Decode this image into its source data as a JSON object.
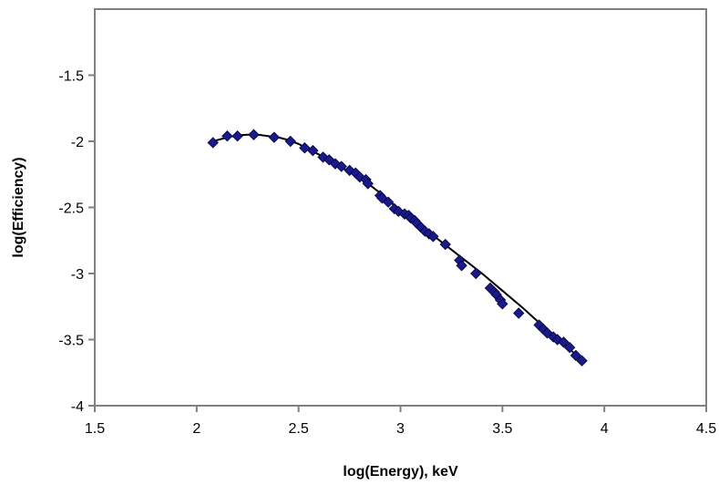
{
  "chart_data": {
    "type": "scatter",
    "title": "",
    "xlabel": "log(Energy), keV",
    "ylabel": "log(Efficiency)",
    "xlim": [
      1.5,
      4.5
    ],
    "ylim": [
      -4,
      -1
    ],
    "x_ticks": [
      "1.5",
      "2",
      "2.5",
      "3",
      "3.5",
      "4",
      "4.5"
    ],
    "y_ticks": [
      "-4",
      "-3.5",
      "-3",
      "-2.5",
      "-2",
      "-1.5"
    ],
    "grid": false,
    "legend": "none",
    "colors": {
      "marker": "#1a1a8c",
      "marker_edge": "#0a0a4a",
      "fit_line": "#000000",
      "axis": "#808080"
    },
    "series": [
      {
        "marker": "diamond",
        "x": [
          2.08,
          2.15,
          2.2,
          2.28,
          2.38,
          2.46,
          2.53,
          2.57,
          2.62,
          2.65,
          2.68,
          2.71,
          2.75,
          2.78,
          2.8,
          2.83,
          2.84,
          2.9,
          2.91,
          2.94,
          2.97,
          2.99,
          3.02,
          3.04,
          3.05,
          3.07,
          3.08,
          3.1,
          3.12,
          3.14,
          3.16,
          3.22,
          3.29,
          3.3,
          3.37,
          3.44,
          3.46,
          3.47,
          3.49,
          3.5,
          3.58,
          3.68,
          3.7,
          3.72,
          3.75,
          3.77,
          3.8,
          3.83,
          3.86,
          3.89
        ],
        "y": [
          -2.01,
          -1.96,
          -1.96,
          -1.95,
          -1.97,
          -2.0,
          -2.05,
          -2.07,
          -2.12,
          -2.14,
          -2.17,
          -2.19,
          -2.22,
          -2.24,
          -2.27,
          -2.29,
          -2.32,
          -2.41,
          -2.43,
          -2.46,
          -2.51,
          -2.53,
          -2.55,
          -2.56,
          -2.58,
          -2.6,
          -2.62,
          -2.65,
          -2.68,
          -2.7,
          -2.72,
          -2.78,
          -2.9,
          -2.94,
          -3.0,
          -3.11,
          -3.14,
          -3.16,
          -3.2,
          -3.23,
          -3.3,
          -3.39,
          -3.42,
          -3.45,
          -3.48,
          -3.5,
          -3.52,
          -3.56,
          -3.62,
          -3.66
        ]
      },
      {
        "style": "line",
        "x": [
          2.08,
          2.15,
          2.2,
          2.25,
          2.3,
          2.35,
          2.4,
          2.45,
          2.5,
          2.55,
          2.6,
          2.65,
          2.7,
          2.75,
          2.8,
          2.85,
          2.9,
          2.95,
          3.0,
          3.05,
          3.1,
          3.15,
          3.2,
          3.3,
          3.4,
          3.5,
          3.6,
          3.7,
          3.8,
          3.9
        ],
        "y": [
          -2.0,
          -1.97,
          -1.955,
          -1.95,
          -1.95,
          -1.96,
          -1.97,
          -1.99,
          -2.02,
          -2.06,
          -2.1,
          -2.15,
          -2.19,
          -2.23,
          -2.28,
          -2.33,
          -2.39,
          -2.46,
          -2.52,
          -2.58,
          -2.64,
          -2.7,
          -2.76,
          -2.88,
          -3.0,
          -3.13,
          -3.26,
          -3.4,
          -3.53,
          -3.67
        ]
      }
    ]
  }
}
